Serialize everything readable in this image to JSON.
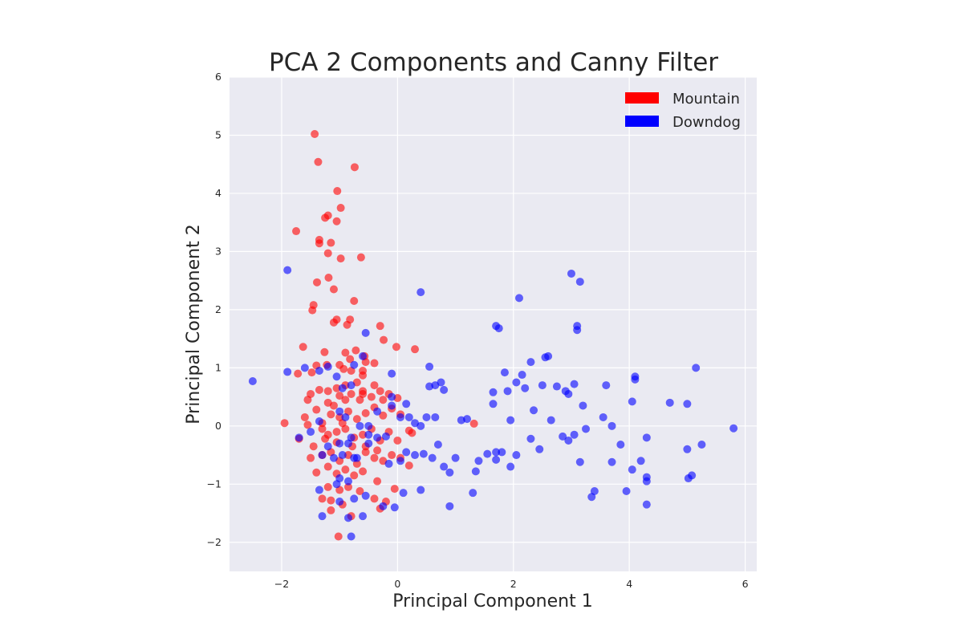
{
  "chart_data": {
    "type": "scatter",
    "title": "PCA 2 Components and Canny Filter",
    "xlabel": "Principal Component 1",
    "ylabel": "Principal Component 2",
    "xlim": [
      -2.9,
      6.2
    ],
    "ylim": [
      -2.5,
      6.0
    ],
    "xticks": [
      -2,
      0,
      2,
      4,
      6
    ],
    "yticks": [
      -2,
      -1,
      0,
      1,
      2,
      3,
      4,
      5,
      6
    ],
    "xtick_labels": [
      "−2",
      "0",
      "2",
      "4",
      "6"
    ],
    "ytick_labels": [
      "−2",
      "−1",
      "0",
      "1",
      "2",
      "3",
      "4",
      "5",
      "6"
    ],
    "grid": true,
    "legend_position": "top-right",
    "background": "#eaeaf2",
    "series": [
      {
        "name": "Mountain",
        "color": "#ff0000",
        "points": [
          [
            -1.43,
            5.02
          ],
          [
            -1.37,
            4.54
          ],
          [
            -0.74,
            4.45
          ],
          [
            -1.04,
            4.04
          ],
          [
            -0.98,
            3.75
          ],
          [
            -1.75,
            3.35
          ],
          [
            -1.2,
            3.62
          ],
          [
            -1.25,
            3.58
          ],
          [
            -1.05,
            3.52
          ],
          [
            -1.35,
            3.2
          ],
          [
            -1.35,
            3.14
          ],
          [
            -1.15,
            3.15
          ],
          [
            -1.2,
            2.97
          ],
          [
            -0.98,
            2.88
          ],
          [
            -0.63,
            2.9
          ],
          [
            -1.19,
            2.55
          ],
          [
            -1.39,
            2.47
          ],
          [
            -1.1,
            2.35
          ],
          [
            -0.75,
            2.15
          ],
          [
            -1.45,
            2.08
          ],
          [
            -1.47,
            1.99
          ],
          [
            -0.82,
            1.83
          ],
          [
            -1.05,
            1.83
          ],
          [
            -1.1,
            1.78
          ],
          [
            -0.87,
            1.74
          ],
          [
            -0.3,
            1.72
          ],
          [
            -0.24,
            1.48
          ],
          [
            0.3,
            1.32
          ],
          [
            -0.02,
            1.36
          ],
          [
            -1.63,
            1.36
          ],
          [
            -1.26,
            1.27
          ],
          [
            -0.9,
            1.26
          ],
          [
            -0.72,
            1.3
          ],
          [
            -0.82,
            1.15
          ],
          [
            -0.57,
            1.2
          ],
          [
            -1.4,
            1.04
          ],
          [
            -1.22,
            1.05
          ],
          [
            -1.0,
            1.05
          ],
          [
            -0.93,
            0.98
          ],
          [
            -0.8,
            0.95
          ],
          [
            -0.55,
            1.1
          ],
          [
            -0.6,
            0.95
          ],
          [
            -0.4,
            1.08
          ],
          [
            -0.6,
            0.87
          ],
          [
            -1.72,
            0.9
          ],
          [
            -1.48,
            0.92
          ],
          [
            -1.35,
            0.62
          ],
          [
            -1.5,
            0.55
          ],
          [
            -1.2,
            0.6
          ],
          [
            -1.05,
            0.65
          ],
          [
            -0.9,
            0.7
          ],
          [
            -0.7,
            0.75
          ],
          [
            -0.4,
            0.7
          ],
          [
            -0.3,
            0.6
          ],
          [
            -0.15,
            0.55
          ],
          [
            0.0,
            0.48
          ],
          [
            -0.6,
            0.6
          ],
          [
            -0.8,
            0.55
          ],
          [
            -1.0,
            0.52
          ],
          [
            -1.2,
            0.4
          ],
          [
            -1.4,
            0.28
          ],
          [
            -1.55,
            0.45
          ],
          [
            -1.6,
            0.15
          ],
          [
            -1.95,
            0.05
          ],
          [
            -1.55,
            0.02
          ],
          [
            -1.3,
            0.05
          ],
          [
            -1.15,
            0.2
          ],
          [
            -1.0,
            0.15
          ],
          [
            -0.85,
            0.25
          ],
          [
            -0.7,
            0.12
          ],
          [
            -0.55,
            0.22
          ],
          [
            -0.4,
            0.32
          ],
          [
            -0.25,
            0.18
          ],
          [
            -0.1,
            0.3
          ],
          [
            0.05,
            0.2
          ],
          [
            -0.25,
            0.45
          ],
          [
            -0.45,
            0.5
          ],
          [
            -0.65,
            0.45
          ],
          [
            -0.9,
            0.45
          ],
          [
            -1.1,
            0.35
          ],
          [
            -1.3,
            -0.05
          ],
          [
            -1.2,
            -0.15
          ],
          [
            -1.05,
            -0.1
          ],
          [
            -0.9,
            -0.05
          ],
          [
            -0.75,
            -0.2
          ],
          [
            -0.6,
            -0.15
          ],
          [
            -0.45,
            -0.05
          ],
          [
            -0.3,
            -0.25
          ],
          [
            -0.15,
            -0.1
          ],
          [
            -0.0,
            -0.25
          ],
          [
            0.2,
            -0.08
          ],
          [
            0.25,
            -0.12
          ],
          [
            -1.7,
            -0.22
          ],
          [
            -1.45,
            -0.35
          ],
          [
            -1.3,
            -0.5
          ],
          [
            -1.15,
            -0.45
          ],
          [
            -1.0,
            -0.6
          ],
          [
            -0.85,
            -0.5
          ],
          [
            -0.7,
            -0.65
          ],
          [
            -0.55,
            -0.45
          ],
          [
            -0.4,
            -0.55
          ],
          [
            -0.25,
            -0.6
          ],
          [
            -0.1,
            -0.5
          ],
          [
            0.05,
            -0.55
          ],
          [
            0.2,
            -0.68
          ],
          [
            -1.5,
            -0.55
          ],
          [
            -1.4,
            -0.8
          ],
          [
            -1.2,
            -0.7
          ],
          [
            -1.05,
            -0.82
          ],
          [
            -0.9,
            -0.75
          ],
          [
            -0.75,
            -0.85
          ],
          [
            -0.6,
            -0.78
          ],
          [
            -0.35,
            -0.95
          ],
          [
            -1.2,
            -1.05
          ],
          [
            -1.0,
            -1.1
          ],
          [
            -0.85,
            -1.05
          ],
          [
            -0.65,
            -1.12
          ],
          [
            -0.4,
            -1.25
          ],
          [
            -0.2,
            -1.3
          ],
          [
            -0.05,
            -1.08
          ],
          [
            -1.3,
            -1.25
          ],
          [
            -1.15,
            -1.28
          ],
          [
            -0.95,
            -1.35
          ],
          [
            -1.15,
            -1.45
          ],
          [
            -0.8,
            -1.55
          ],
          [
            -0.3,
            -1.42
          ],
          [
            -1.02,
            -1.9
          ],
          [
            1.32,
            0.04
          ],
          [
            -0.6,
            0.55
          ],
          [
            -0.95,
            0.05
          ],
          [
            -1.05,
            -0.28
          ],
          [
            -0.55,
            -0.35
          ],
          [
            -0.35,
            -0.42
          ],
          [
            -1.25,
            -0.22
          ],
          [
            -0.78,
            -0.35
          ]
        ]
      },
      {
        "name": "Downdog",
        "color": "#0000ff",
        "points": [
          [
            -2.5,
            0.77
          ],
          [
            -1.9,
            2.68
          ],
          [
            -1.9,
            0.93
          ],
          [
            -1.6,
            1.0
          ],
          [
            -1.35,
            0.95
          ],
          [
            -1.2,
            1.02
          ],
          [
            -1.05,
            0.85
          ],
          [
            -0.95,
            0.65
          ],
          [
            -0.75,
            1.05
          ],
          [
            -0.6,
            1.2
          ],
          [
            -0.55,
            1.6
          ],
          [
            0.4,
            2.3
          ],
          [
            -0.1,
            0.9
          ],
          [
            -0.1,
            0.5
          ],
          [
            -0.1,
            0.35
          ],
          [
            0.05,
            0.15
          ],
          [
            0.15,
            0.38
          ],
          [
            0.2,
            0.15
          ],
          [
            0.3,
            0.05
          ],
          [
            0.4,
            0.0
          ],
          [
            0.5,
            0.15
          ],
          [
            0.55,
            1.02
          ],
          [
            0.55,
            0.68
          ],
          [
            0.65,
            0.7
          ],
          [
            0.65,
            0.15
          ],
          [
            0.75,
            0.75
          ],
          [
            0.8,
            0.62
          ],
          [
            0.7,
            -0.32
          ],
          [
            0.6,
            -0.55
          ],
          [
            0.45,
            -0.48
          ],
          [
            0.3,
            -0.5
          ],
          [
            0.15,
            -0.45
          ],
          [
            0.05,
            -0.6
          ],
          [
            -0.15,
            -0.65
          ],
          [
            -0.2,
            -0.18
          ],
          [
            -0.35,
            -0.2
          ],
          [
            -0.5,
            -0.3
          ],
          [
            0.8,
            -0.7
          ],
          [
            0.9,
            -0.8
          ],
          [
            1.0,
            -0.55
          ],
          [
            0.9,
            -1.38
          ],
          [
            1.1,
            0.1
          ],
          [
            1.2,
            0.12
          ],
          [
            1.3,
            -1.15
          ],
          [
            1.35,
            -0.78
          ],
          [
            1.4,
            -0.6
          ],
          [
            1.55,
            -0.48
          ],
          [
            1.65,
            0.38
          ],
          [
            1.65,
            0.58
          ],
          [
            1.7,
            -0.45
          ],
          [
            1.7,
            -0.58
          ],
          [
            1.7,
            1.72
          ],
          [
            1.75,
            1.68
          ],
          [
            1.8,
            -0.45
          ],
          [
            1.85,
            0.92
          ],
          [
            1.9,
            0.6
          ],
          [
            1.95,
            0.1
          ],
          [
            1.95,
            -0.7
          ],
          [
            2.05,
            0.75
          ],
          [
            2.05,
            -0.5
          ],
          [
            2.1,
            2.2
          ],
          [
            2.15,
            0.88
          ],
          [
            2.2,
            0.65
          ],
          [
            2.3,
            1.1
          ],
          [
            2.3,
            -0.22
          ],
          [
            2.35,
            0.27
          ],
          [
            2.45,
            -0.4
          ],
          [
            2.5,
            0.7
          ],
          [
            2.55,
            1.18
          ],
          [
            2.6,
            1.2
          ],
          [
            2.65,
            0.1
          ],
          [
            2.75,
            0.68
          ],
          [
            2.85,
            -0.18
          ],
          [
            2.9,
            0.6
          ],
          [
            2.95,
            0.55
          ],
          [
            2.95,
            -0.25
          ],
          [
            3.0,
            2.62
          ],
          [
            3.05,
            -0.15
          ],
          [
            3.05,
            0.72
          ],
          [
            3.1,
            1.65
          ],
          [
            3.1,
            1.72
          ],
          [
            3.15,
            2.48
          ],
          [
            3.15,
            -0.62
          ],
          [
            3.2,
            0.35
          ],
          [
            3.25,
            -0.05
          ],
          [
            3.35,
            -1.22
          ],
          [
            3.4,
            -1.12
          ],
          [
            3.55,
            0.15
          ],
          [
            3.6,
            0.7
          ],
          [
            3.7,
            -0.62
          ],
          [
            3.7,
            0.0
          ],
          [
            3.85,
            -0.32
          ],
          [
            3.95,
            -1.12
          ],
          [
            4.05,
            0.42
          ],
          [
            4.05,
            -0.75
          ],
          [
            4.1,
            0.8
          ],
          [
            4.1,
            0.85
          ],
          [
            4.2,
            -0.6
          ],
          [
            4.3,
            -0.88
          ],
          [
            4.3,
            -0.95
          ],
          [
            4.3,
            -0.2
          ],
          [
            4.3,
            -1.35
          ],
          [
            4.7,
            0.4
          ],
          [
            5.0,
            0.38
          ],
          [
            5.0,
            -0.4
          ],
          [
            5.02,
            -0.9
          ],
          [
            5.08,
            -0.85
          ],
          [
            5.15,
            1.0
          ],
          [
            5.25,
            -0.32
          ],
          [
            5.8,
            -0.04
          ],
          [
            -1.7,
            -0.2
          ],
          [
            -1.5,
            -0.1
          ],
          [
            -1.35,
            0.08
          ],
          [
            -1.2,
            -0.35
          ],
          [
            -1.0,
            -0.3
          ],
          [
            -0.8,
            -0.2
          ],
          [
            -0.65,
            0.0
          ],
          [
            -0.5,
            -0.15
          ],
          [
            -0.9,
            0.15
          ],
          [
            -0.75,
            -0.55
          ],
          [
            -0.95,
            -0.5
          ],
          [
            -1.1,
            -0.55
          ],
          [
            -1.3,
            -0.5
          ],
          [
            -1.0,
            -0.9
          ],
          [
            -0.85,
            -0.95
          ],
          [
            -1.05,
            -1.0
          ],
          [
            -0.75,
            -1.25
          ],
          [
            -0.55,
            -1.2
          ],
          [
            -1.0,
            -1.3
          ],
          [
            -1.35,
            -1.1
          ],
          [
            -1.3,
            -1.55
          ],
          [
            -0.85,
            -1.58
          ],
          [
            -0.6,
            -1.55
          ],
          [
            -0.8,
            -1.9
          ],
          [
            -0.85,
            -0.3
          ],
          [
            -0.7,
            -0.55
          ],
          [
            -0.5,
            0.0
          ],
          [
            -0.35,
            0.25
          ],
          [
            -0.25,
            -1.38
          ],
          [
            -0.05,
            -1.4
          ],
          [
            0.1,
            -1.15
          ],
          [
            0.4,
            -1.1
          ],
          [
            -0.8,
            0.7
          ],
          [
            -1.0,
            0.25
          ]
        ]
      }
    ]
  }
}
